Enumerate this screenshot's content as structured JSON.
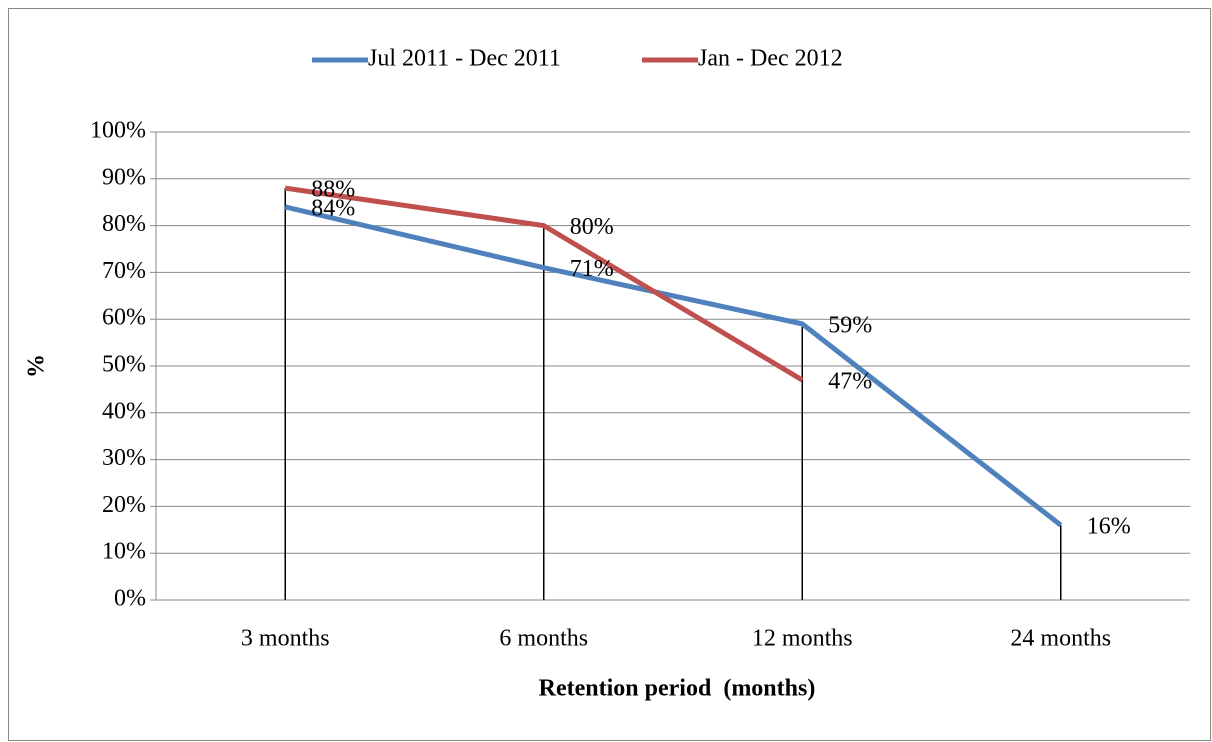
{
  "chart_data": {
    "type": "line",
    "x_label": "Retention period  (months)",
    "y_label": "%",
    "categories": [
      "3 months",
      "6 months",
      "12 months",
      "24 months"
    ],
    "series": [
      {
        "name": "Jul 2011 - Dec 2011",
        "color": "#4f81bd",
        "values": [
          84,
          71,
          59,
          16
        ],
        "value_labels": [
          "84%",
          "71%",
          "59%",
          "16%"
        ]
      },
      {
        "name": "Jan - Dec 2012",
        "color": "#c0504d",
        "values": [
          88,
          80,
          47,
          null
        ],
        "value_labels": [
          "88%",
          "80%",
          "47%",
          null
        ]
      }
    ],
    "ylim": [
      0,
      100
    ],
    "yticks": [
      {
        "value": 0,
        "label": "0%"
      },
      {
        "value": 10,
        "label": "10%"
      },
      {
        "value": 20,
        "label": "20%"
      },
      {
        "value": 30,
        "label": "30%"
      },
      {
        "value": 40,
        "label": "40%"
      },
      {
        "value": 50,
        "label": "50%"
      },
      {
        "value": 60,
        "label": "60%"
      },
      {
        "value": 70,
        "label": "70%"
      },
      {
        "value": 80,
        "label": "80%"
      },
      {
        "value": 90,
        "label": "90%"
      },
      {
        "value": 100,
        "label": "100%"
      }
    ],
    "grid": true,
    "legend": "top"
  }
}
